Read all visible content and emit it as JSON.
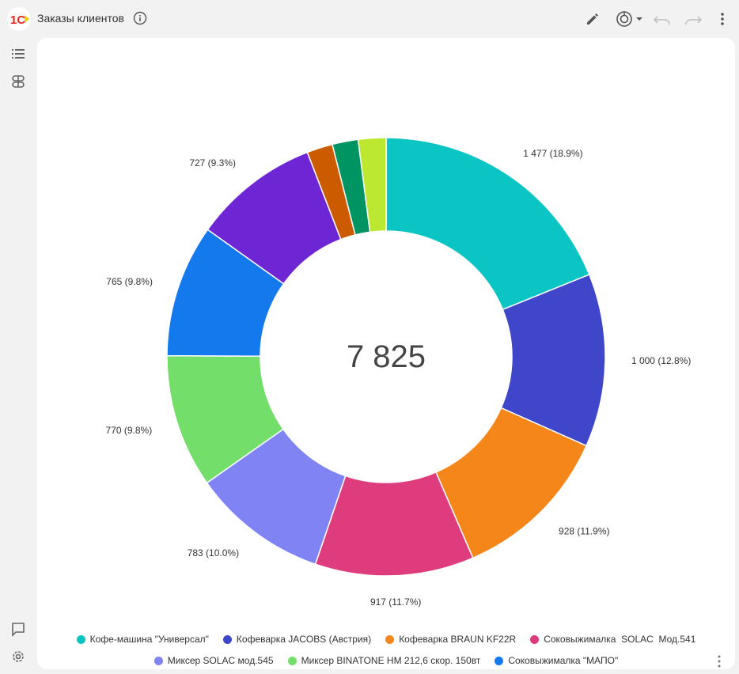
{
  "window": {
    "title": "Заказы клиентов"
  },
  "colors": {
    "logo_red": "#e1261c",
    "logo_yellow": "#f9c80e"
  },
  "toolbar": {
    "icons": [
      "edit-icon",
      "chart-settings-icon",
      "undo-icon",
      "redo-icon",
      "more-vert-icon"
    ]
  },
  "sidebar": {
    "top_icons": [
      "list-icon",
      "grouping-icon"
    ],
    "bottom_icons": [
      "comment-icon",
      "settings-icon"
    ]
  },
  "chart_data": {
    "type": "pie",
    "center_total": "7 825",
    "slices": [
      {
        "name": "Кофе-машина \"Универсал\"",
        "value": 1477,
        "label": "1 477 (18.9%)",
        "color": "#0bc4c4"
      },
      {
        "name": "Кофеварка JACOBS (Австрия)",
        "value": 1000,
        "label": "1 000 (12.8%)",
        "color": "#3f46c9"
      },
      {
        "name": "Кофеварка BRAUN KF22R",
        "value": 928,
        "label": "928 (11.9%)",
        "color": "#f5871a"
      },
      {
        "name": "Соковыжималка  SOLAC  Мод.541",
        "value": 917,
        "label": "917 (11.7%)",
        "color": "#df3c7e"
      },
      {
        "name": "Миксер SOLAC мод.545",
        "value": 783,
        "label": "783 (10.0%)",
        "color": "#7f83f4"
      },
      {
        "name": "Миксер BINATONE HM 212,6 скор. 150вт",
        "value": 770,
        "label": "770 (9.8%)",
        "color": "#73de6a"
      },
      {
        "name": "Соковыжималка \"МАПО\"",
        "value": 765,
        "label": "765 (9.8%)",
        "color": "#1479ed"
      },
      {
        "name": "",
        "value": 727,
        "label": "727 (9.3%)",
        "color": "#6e26d5"
      },
      {
        "name": "",
        "value": 149,
        "label": "",
        "color": "#cc5b00"
      },
      {
        "name": "",
        "value": 149,
        "label": "",
        "color": "#009462"
      },
      {
        "name": "",
        "value": 160,
        "label": "",
        "color": "#bde832"
      }
    ]
  },
  "legend": {
    "rows": [
      [
        {
          "label": "Кофе-машина \"Универсал\"",
          "color": "#0bc4c4"
        },
        {
          "label": "Кофеварка JACOBS (Австрия)",
          "color": "#3f46c9"
        },
        {
          "label": "Кофеварка BRAUN KF22R",
          "color": "#f5871a"
        },
        {
          "label": "Соковыжималка  SOLAC  Мод.541",
          "color": "#df3c7e"
        }
      ],
      [
        {
          "label": "Миксер SOLAC мод.545",
          "color": "#7f83f4"
        },
        {
          "label": "Миксер BINATONE HM 212,6 скор. 150вт",
          "color": "#73de6a"
        },
        {
          "label": "Соковыжималка \"МАПО\"",
          "color": "#1479ed"
        }
      ]
    ]
  }
}
